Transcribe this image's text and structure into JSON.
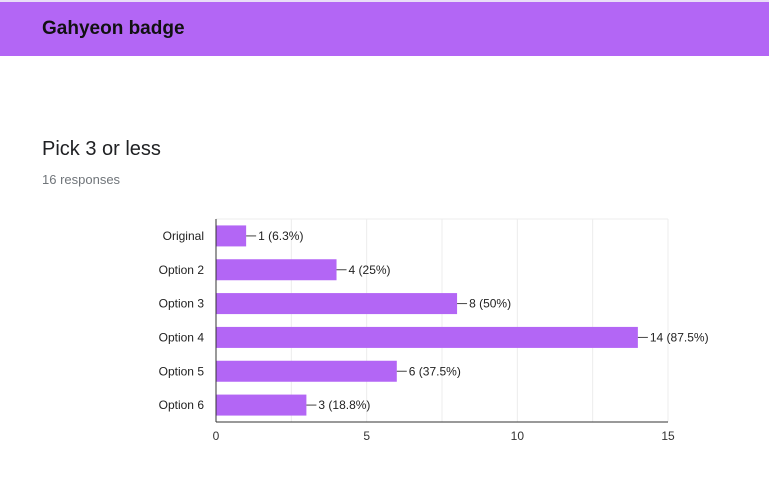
{
  "header": {
    "title": "Gahyeon badge",
    "background_color": "#b366f5"
  },
  "question": {
    "title": "Pick 3 or less",
    "response_count": "16 responses"
  },
  "chart_data": {
    "type": "bar",
    "orientation": "horizontal",
    "title": "",
    "xlabel": "",
    "ylabel": "",
    "categories": [
      "Original",
      "Option 2",
      "Option 3",
      "Option 4",
      "Option 5",
      "Option 6"
    ],
    "values": [
      1,
      4,
      8,
      14,
      6,
      3
    ],
    "data_labels": [
      "1 (6.3%)",
      "4 (25%)",
      "8 (50%)",
      "14 (87.5%)",
      "6 (37.5%)",
      "3 (18.8%)"
    ],
    "xlim": [
      0,
      15
    ],
    "xticks": [
      0,
      5,
      10,
      15
    ],
    "grid": true,
    "bar_color": "#b366f5"
  }
}
